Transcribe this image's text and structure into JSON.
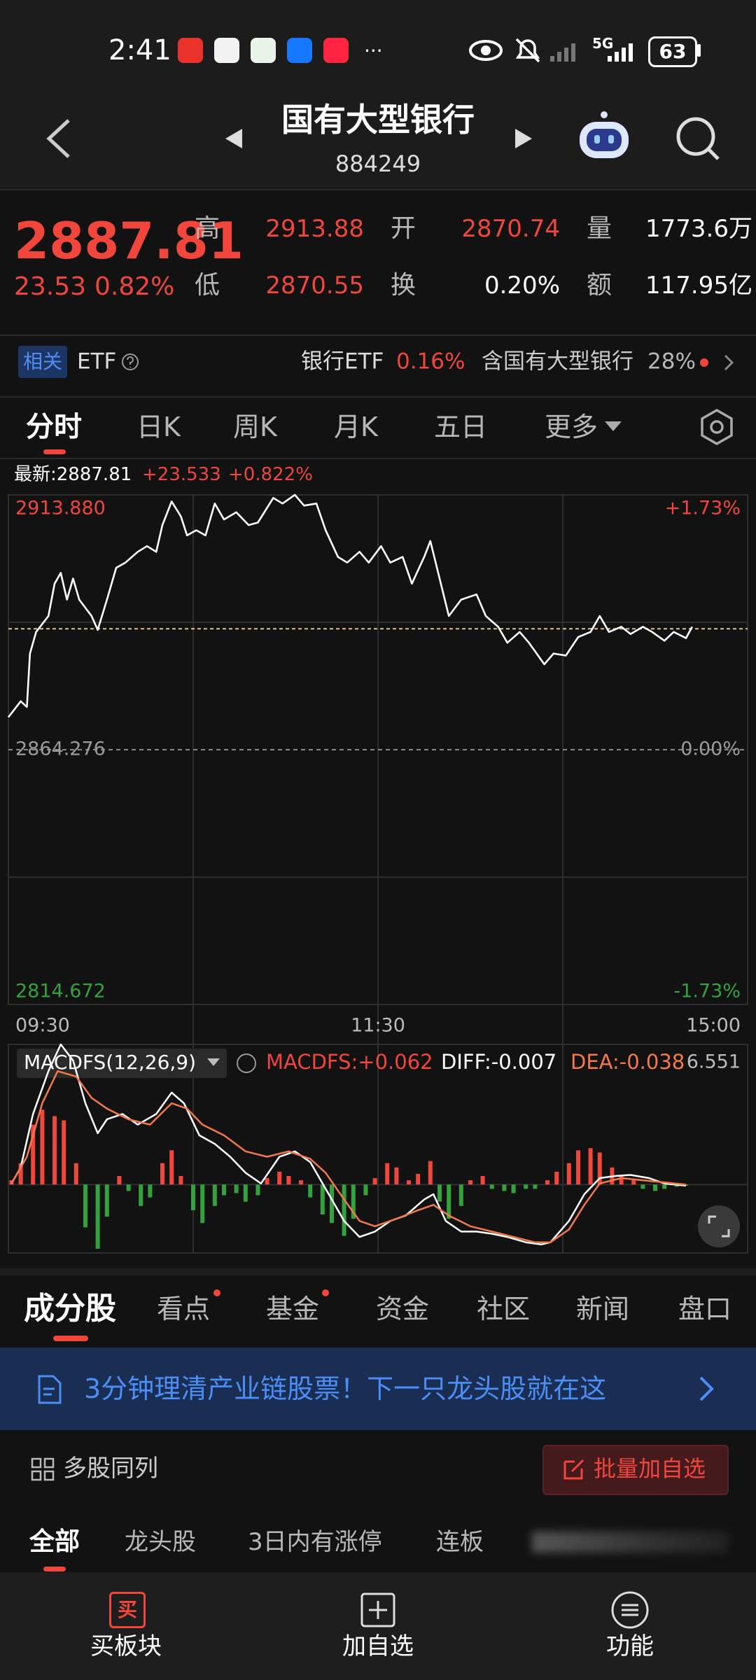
{
  "status_bar": {
    "time": "2:41",
    "network": "5G",
    "battery": "63"
  },
  "header": {
    "title": "国有大型银行",
    "code": "884249"
  },
  "quote": {
    "price": "2887.81",
    "change": "23.53",
    "change_pct": "0.82%",
    "fields": [
      {
        "label": "高",
        "value": "2913.88"
      },
      {
        "label": "开",
        "value": "2870.74"
      },
      {
        "label": "量",
        "value": "1773.6万"
      },
      {
        "label": "低",
        "value": "2870.55"
      },
      {
        "label": "换",
        "value": "0.20%"
      },
      {
        "label": "额",
        "value": "117.95亿"
      }
    ]
  },
  "related": {
    "badge": "相关",
    "label": "ETF",
    "etf_name": "银行ETF",
    "etf_change": "0.16%",
    "holding": "含国有大型银行",
    "holding_pct": "28%"
  },
  "period_tabs": [
    "分时",
    "日K",
    "周K",
    "月K",
    "五日",
    "更多"
  ],
  "chart_info": {
    "latest": "最新:2887.81",
    "change": "+23.533",
    "change_pct": "+0.822%"
  },
  "chart_data": [
    {
      "type": "line",
      "x": [
        0,
        4,
        6,
        7,
        9,
        13,
        15,
        17,
        19,
        21,
        23,
        27,
        29,
        32,
        35,
        38,
        42,
        45,
        48,
        50,
        53,
        56,
        58,
        61,
        64,
        67,
        70,
        74,
        78,
        81,
        86,
        89,
        93,
        96,
        100,
        103,
        107,
        110,
        114,
        117,
        121,
        124,
        128,
        131,
        135,
        137,
        140,
        143,
        147,
        152,
        155,
        159,
        162,
        166,
        169,
        174,
        177,
        181,
        185,
        189,
        192,
        195,
        199,
        202,
        206,
        209,
        213,
        216,
        220,
        222
      ],
      "series": [
        {
          "color": "#ffffff",
          "values": [
            2870.6,
            2873.7,
            2872.6,
            2883.0,
            2887.2,
            2890.3,
            2896.6,
            2898.7,
            2893.5,
            2897.6,
            2893.5,
            2890.3,
            2887.6,
            2893.5,
            2899.7,
            2900.7,
            2902.8,
            2903.9,
            2902.8,
            2908.0,
            2912.6,
            2909.7,
            2906.0,
            2907.0,
            2906.0,
            2912.2,
            2909.1,
            2910.5,
            2908.0,
            2908.5,
            2913.3,
            2912.2,
            2913.9,
            2911.8,
            2912.2,
            2907.0,
            2901.8,
            2900.7,
            2902.8,
            2900.7,
            2903.9,
            2900.7,
            2901.8,
            2896.6,
            2901.8,
            2904.9,
            2897.6,
            2890.3,
            2893.5,
            2894.5,
            2890.3,
            2888.2,
            2885.1,
            2887.2,
            2885.1,
            2880.9,
            2883.0,
            2882.6,
            2886.2,
            2887.2,
            2890.3,
            2887.2,
            2888.2,
            2886.8,
            2888.2,
            2887.2,
            2885.5,
            2887.2,
            2886.0,
            2888.2
          ]
        }
      ],
      "xlim": [
        0,
        240
      ],
      "xticks": [
        {
          "value": 0,
          "label": "09:30"
        },
        {
          "value": 120,
          "label": "11:30"
        },
        {
          "value": 240,
          "label": "15:00"
        }
      ],
      "ylim": [
        2814.672,
        2913.88
      ],
      "yticks": [
        {
          "value": 2913.88,
          "label": "2913.880"
        },
        2864.276,
        2814.672
      ],
      "y2lim": [
        -1.73,
        1.73
      ],
      "y2ticks": [
        {
          "value": 1.73,
          "label": "+1.73%"
        },
        {
          "value": 0,
          "label": "0.00%"
        },
        {
          "value": -1.73,
          "label": "-1.73%"
        }
      ],
      "reference_line": 2887.81
    },
    {
      "type": "macd",
      "title": "MACDFS(12,26,9)",
      "legend": [
        {
          "label": "MACDFS:+0.062",
          "color": "#f0463c"
        },
        {
          "label": "DIFF:-0.007",
          "color": "#ffffff"
        },
        {
          "label": "DEA:-0.038",
          "color": "#f4794a"
        }
      ],
      "xlim": [
        0,
        240
      ],
      "ylim": [
        -3.2,
        6.551
      ],
      "yticks": [
        6.551
      ],
      "series": [
        {
          "type": "bar",
          "color": "#f0463c",
          "negative_color": "#33a23d",
          "x": [
            1,
            4,
            8,
            11,
            15,
            18,
            22,
            25,
            29,
            32,
            36,
            39,
            43,
            46,
            50,
            53,
            56,
            60,
            63,
            67,
            70,
            74,
            77,
            81,
            84,
            88,
            91,
            95,
            98,
            102,
            105,
            109,
            112,
            116,
            119,
            123,
            126,
            130,
            133,
            137,
            140,
            143,
            147,
            150,
            154,
            157,
            161,
            164,
            168,
            171,
            175,
            178,
            182,
            185,
            189,
            192,
            196,
            199,
            203,
            206,
            210,
            213,
            217,
            220
          ],
          "values": [
            0.2,
            1.0,
            2.8,
            3.5,
            3.2,
            3.0,
            1.0,
            -2.0,
            -3.0,
            -1.5,
            0.4,
            -0.3,
            -1.0,
            -0.6,
            1.0,
            1.6,
            0.4,
            -1.2,
            -1.8,
            -1.0,
            -0.5,
            -0.4,
            -0.8,
            -0.5,
            0.3,
            0.6,
            0.4,
            0.2,
            -0.6,
            -1.4,
            -1.8,
            -2.4,
            -1.6,
            -0.5,
            0.3,
            1.0,
            0.8,
            0.2,
            0.5,
            1.1,
            -0.8,
            -1.6,
            -1.0,
            0.2,
            0.4,
            -0.2,
            -0.3,
            -0.4,
            -0.2,
            -0.2,
            0.2,
            0.6,
            1.0,
            1.6,
            1.7,
            1.5,
            0.8,
            0.4,
            0.2,
            -0.2,
            -0.3,
            -0.2,
            -0.1,
            -0.05
          ]
        },
        {
          "type": "line",
          "color": "#ffffff",
          "x": [
            1,
            4,
            8,
            13,
            17,
            21,
            25,
            29,
            32,
            37,
            42,
            48,
            53,
            57,
            62,
            67,
            72,
            77,
            82,
            88,
            93,
            98,
            103,
            109,
            114,
            119,
            124,
            129,
            135,
            138,
            142,
            147,
            152,
            157,
            162,
            168,
            173,
            176,
            182,
            187,
            192,
            197,
            202,
            208,
            213,
            220
          ],
          "values": [
            0.05,
            0.8,
            3.3,
            5.3,
            6.55,
            5.8,
            3.8,
            2.4,
            3.05,
            3.3,
            2.8,
            3.3,
            4.3,
            3.8,
            2.3,
            1.9,
            1.3,
            0.55,
            0.05,
            1.3,
            1.55,
            1.05,
            -0.2,
            -1.7,
            -2.45,
            -2.2,
            -1.7,
            -1.45,
            -0.7,
            -0.45,
            -1.7,
            -2.2,
            -2.2,
            -2.3,
            -2.45,
            -2.7,
            -2.8,
            -2.7,
            -1.7,
            -0.45,
            0.3,
            0.4,
            0.45,
            0.3,
            0.05,
            -0.05
          ]
        },
        {
          "type": "line",
          "color": "#f4794a",
          "x": [
            1,
            6,
            11,
            16,
            22,
            27,
            32,
            39,
            46,
            53,
            58,
            63,
            70,
            77,
            84,
            91,
            98,
            103,
            109,
            114,
            119,
            126,
            133,
            138,
            143,
            150,
            157,
            164,
            171,
            176,
            182,
            187,
            192,
            199,
            206,
            213,
            220
          ],
          "values": [
            0.05,
            1.3,
            3.8,
            5.3,
            5.05,
            4.05,
            3.55,
            3.05,
            2.8,
            3.8,
            3.55,
            2.8,
            2.3,
            1.55,
            1.3,
            1.55,
            1.2,
            0.55,
            -0.7,
            -1.7,
            -1.95,
            -1.6,
            -1.2,
            -0.95,
            -1.45,
            -1.95,
            -2.2,
            -2.45,
            -2.7,
            -2.7,
            -2.1,
            -0.95,
            0.05,
            0.3,
            0.2,
            0.1,
            0
          ]
        }
      ]
    }
  ],
  "section_tabs": [
    "成分股",
    "看点",
    "基金",
    "资金",
    "社区",
    "新闻",
    "盘口"
  ],
  "banner": "3分钟理清产业链股票！下一只龙头股就在这",
  "list_toolbar": {
    "left": "多股同列",
    "button": "批量加自选"
  },
  "filter_tabs": [
    "全部",
    "龙头股",
    "3日内有涨停",
    "连板"
  ],
  "bottom_nav": {
    "buy_icon": "买",
    "items": [
      "买板块",
      "加自选",
      "功能"
    ]
  }
}
